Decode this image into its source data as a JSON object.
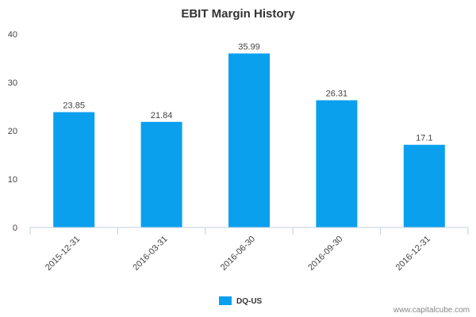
{
  "chart_data": {
    "type": "bar",
    "title": "EBIT Margin History",
    "categories": [
      "2015-12-31",
      "2016-03-31",
      "2016-06-30",
      "2016-09-30",
      "2016-12-31"
    ],
    "series": [
      {
        "name": "DQ-US",
        "values": [
          23.85,
          21.84,
          35.99,
          26.31,
          17.1
        ],
        "color": "#0aa0ee"
      }
    ],
    "data_labels": [
      "23.85",
      "21.84",
      "35.99",
      "26.31",
      "17.1"
    ],
    "yticks": [
      "0",
      "10",
      "20",
      "30",
      "40"
    ],
    "ylim": [
      0,
      40
    ],
    "grid": false,
    "legend": "bottom-center"
  },
  "credit": "www.capitalcube.com",
  "colors": {
    "axis": "#c0cfe0",
    "text": "#444444"
  }
}
